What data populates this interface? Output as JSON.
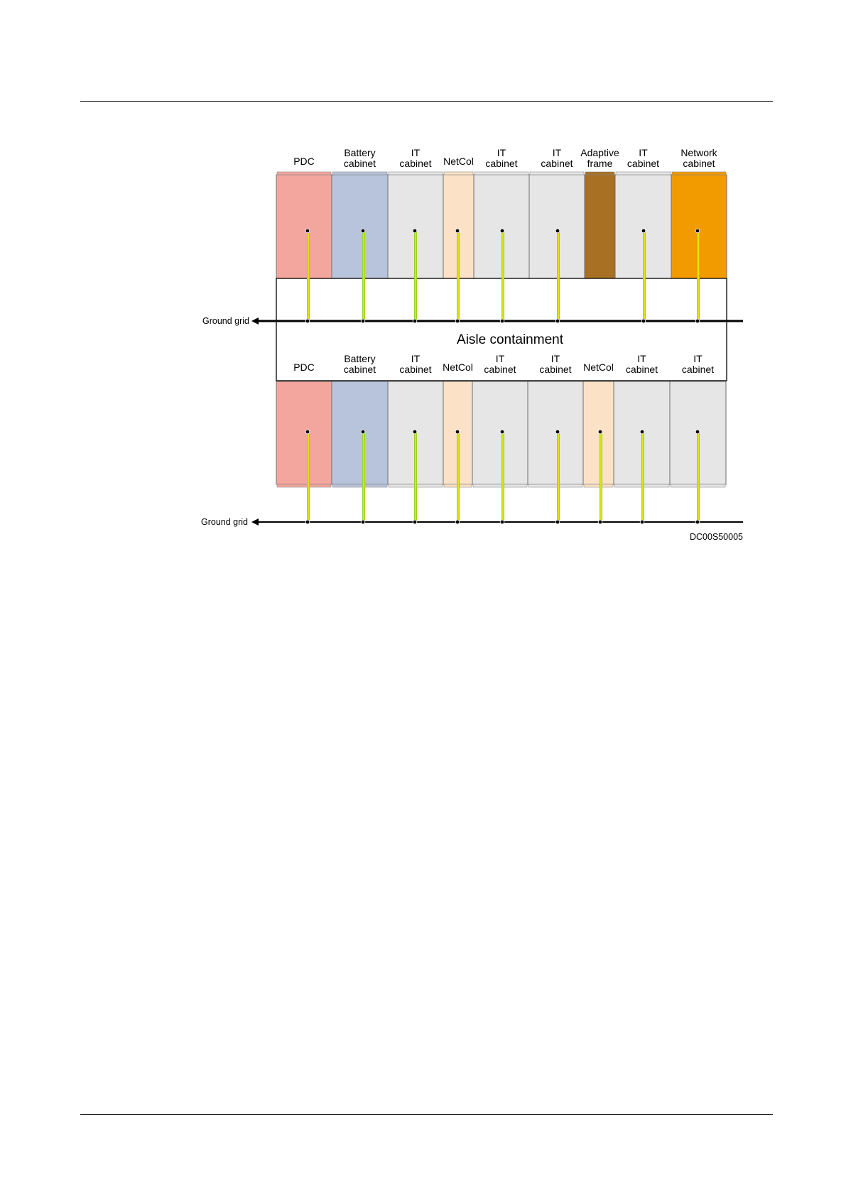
{
  "colors": {
    "PDC": "#f3a69e",
    "Battery cabinet": "#b8c4dc",
    "IT cabinet": "#e6e6e6",
    "NetCol": "#fbe2c6",
    "Adaptive frame": "#a87023",
    "Network cabinet": "#f29b00",
    "ground_cable_outer": "#9bd12a",
    "ground_cable_inner": "#ffee00"
  },
  "top_row": {
    "cabinets": [
      {
        "type": "PDC",
        "label": [
          "PDC"
        ]
      },
      {
        "type": "Battery cabinet",
        "label": [
          "Battery",
          "cabinet"
        ]
      },
      {
        "type": "IT cabinet",
        "label": [
          "IT",
          "cabinet"
        ]
      },
      {
        "type": "NetCol",
        "label": [
          "NetCol"
        ]
      },
      {
        "type": "IT cabinet",
        "label": [
          "IT",
          "cabinet"
        ]
      },
      {
        "type": "IT cabinet",
        "label": [
          "IT",
          "cabinet"
        ]
      },
      {
        "type": "Adaptive frame",
        "label": [
          "Adaptive",
          "frame"
        ]
      },
      {
        "type": "IT cabinet",
        "label": [
          "IT",
          "cabinet"
        ]
      },
      {
        "type": "Network cabinet",
        "label": [
          "Network",
          "cabinet"
        ]
      }
    ]
  },
  "bottom_row": {
    "cabinets": [
      {
        "type": "PDC",
        "label": [
          "PDC"
        ]
      },
      {
        "type": "Battery cabinet",
        "label": [
          "Battery",
          "cabinet"
        ]
      },
      {
        "type": "IT cabinet",
        "label": [
          "IT",
          "cabinet"
        ]
      },
      {
        "type": "NetCol",
        "label": [
          "NetCol"
        ]
      },
      {
        "type": "IT cabinet",
        "label": [
          "IT",
          "cabinet"
        ]
      },
      {
        "type": "IT cabinet",
        "label": [
          "IT",
          "cabinet"
        ]
      },
      {
        "type": "NetCol",
        "label": [
          "NetCol"
        ]
      },
      {
        "type": "IT cabinet",
        "label": [
          "IT",
          "cabinet"
        ]
      },
      {
        "type": "IT cabinet",
        "label": [
          "IT",
          "cabinet"
        ]
      }
    ]
  },
  "aisle_label": "Aisle containment",
  "ground_grid_label": "Ground grid",
  "figure_code": "DC00S50005"
}
